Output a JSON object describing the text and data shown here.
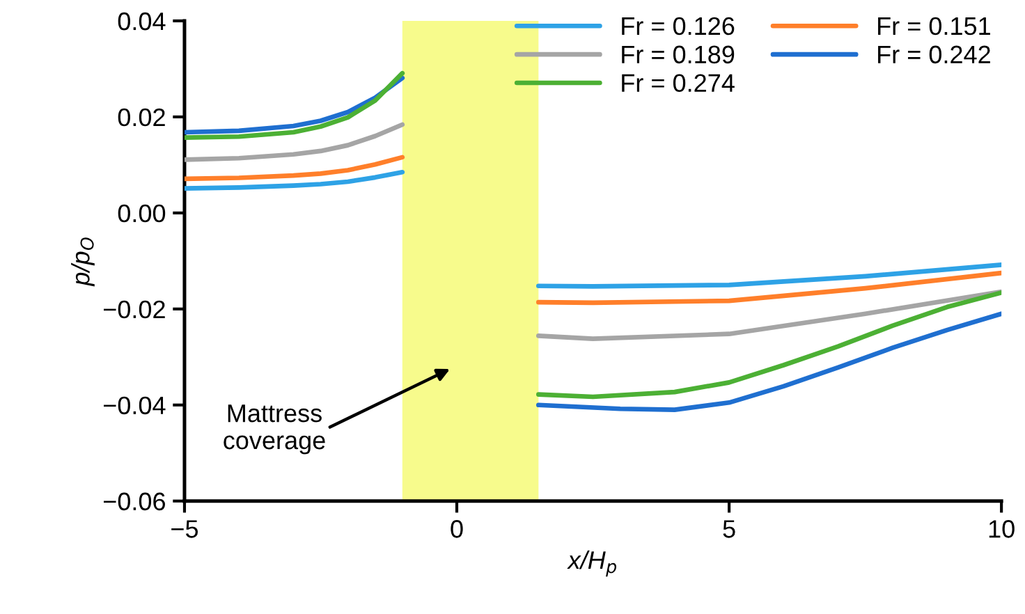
{
  "chart_data": {
    "type": "line",
    "xlabel": "x/H$_{p}$",
    "ylabel": "p/p$_{O}$",
    "xlim": [
      -5,
      10
    ],
    "xticks": [
      {
        "value": -5,
        "label": "−5"
      },
      0,
      5,
      10
    ],
    "ylim": [
      -0.06,
      0.04
    ],
    "yticks": [
      {
        "value": -0.06,
        "label": "−0.06"
      },
      {
        "value": -0.04,
        "label": "−0.04"
      },
      {
        "value": -0.02,
        "label": "−0.02"
      },
      {
        "value": 0,
        "label": "0.00"
      },
      0.02,
      0.04
    ],
    "grid": false,
    "legend": "top right",
    "marker": "none",
    "line_style": "solid",
    "bands": [
      {
        "axis": "x",
        "from": -1,
        "to": 1.5,
        "color": "#f7fb8c"
      }
    ],
    "annotations": [
      "Mattress\ncoverage"
    ],
    "series": [
      {
        "name": "Fr = 0.126",
        "color": "#2ea2e6",
        "x": [
          -5,
          -4,
          -3,
          -2.5,
          -2,
          -1.5,
          -1,
          null,
          1.5,
          2.5,
          5,
          7.5,
          10
        ],
        "values": [
          0.0051,
          0.0053,
          0.0057,
          0.006,
          0.0065,
          0.0074,
          0.0085,
          null,
          -0.0152,
          -0.0153,
          -0.015,
          -0.0132,
          -0.0108
        ]
      },
      {
        "name": "Fr = 0.151",
        "color": "#ff7f2a",
        "x": [
          -5,
          -4,
          -3,
          -2.5,
          -2,
          -1.5,
          -1,
          null,
          1.5,
          2.5,
          5,
          7.5,
          10
        ],
        "values": [
          0.0071,
          0.0073,
          0.0078,
          0.0082,
          0.0089,
          0.0101,
          0.0116,
          null,
          -0.0186,
          -0.0187,
          -0.0183,
          -0.0157,
          -0.0125
        ]
      },
      {
        "name": "Fr = 0.189",
        "color": "#a5a5a5",
        "x": [
          -5,
          -4,
          -3,
          -2.5,
          -2,
          -1.5,
          -1,
          null,
          1.5,
          2.5,
          5,
          7.5,
          10
        ],
        "values": [
          0.0111,
          0.0114,
          0.0122,
          0.0129,
          0.0141,
          0.016,
          0.0184,
          null,
          -0.0256,
          -0.0262,
          -0.0252,
          -0.021,
          -0.0164
        ]
      },
      {
        "name": "Fr = 0.242",
        "color": "#1f6fd0",
        "x": [
          -5,
          -4,
          -3,
          -2.5,
          -2,
          -1.5,
          -1,
          null,
          1.5,
          3,
          4,
          5,
          6,
          7,
          8,
          9,
          10
        ],
        "values": [
          0.0168,
          0.0171,
          0.0181,
          0.0192,
          0.021,
          0.024,
          0.0281,
          null,
          -0.04,
          -0.0408,
          -0.041,
          -0.0395,
          -0.0361,
          -0.0322,
          -0.0281,
          -0.0244,
          -0.021
        ]
      },
      {
        "name": "Fr = 0.274",
        "color": "#4cb034",
        "x": [
          -5,
          -4,
          -3,
          -2.5,
          -2,
          -1.5,
          -1,
          null,
          1.5,
          2.5,
          4,
          5,
          6,
          7,
          8,
          9,
          10
        ],
        "values": [
          0.0157,
          0.0159,
          0.0168,
          0.018,
          0.0199,
          0.0234,
          0.0291,
          null,
          -0.0378,
          -0.0383,
          -0.0373,
          -0.0353,
          -0.0317,
          -0.0278,
          -0.0235,
          -0.0196,
          -0.0166
        ]
      }
    ]
  }
}
